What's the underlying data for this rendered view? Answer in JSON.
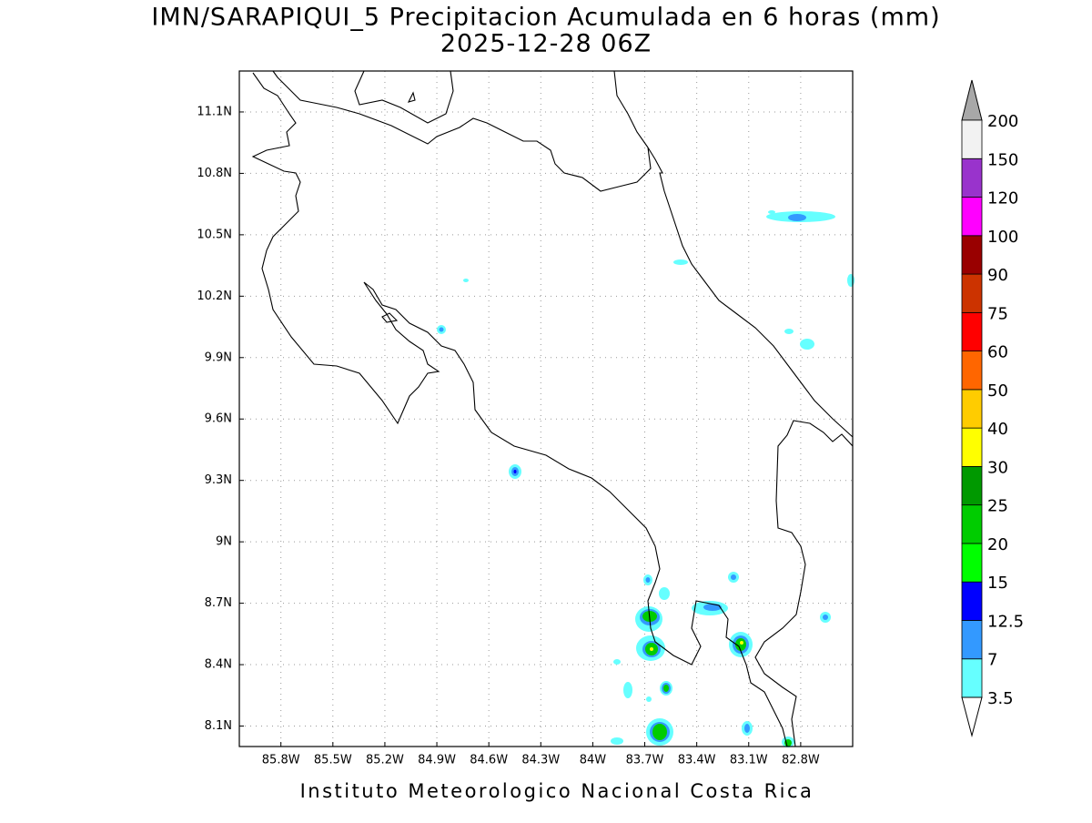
{
  "chart_data": {
    "type": "map",
    "title": "IMN/SARAPIQUI_5 Precipitacion Acumulada en 6 horas (mm)",
    "subtitle": "2025-12-28 06Z",
    "xlim": [
      -86.04,
      -82.5
    ],
    "ylim": [
      8.0,
      11.3
    ],
    "xticks": [
      {
        "value": -85.8,
        "label": "85.8W"
      },
      {
        "value": -85.5,
        "label": "85.5W"
      },
      {
        "value": -85.2,
        "label": "85.2W"
      },
      {
        "value": -84.9,
        "label": "84.9W"
      },
      {
        "value": -84.6,
        "label": "84.6W"
      },
      {
        "value": -84.3,
        "label": "84.3W"
      },
      {
        "value": -84.0,
        "label": "84W"
      },
      {
        "value": -83.7,
        "label": "83.7W"
      },
      {
        "value": -83.4,
        "label": "83.4W"
      },
      {
        "value": -83.1,
        "label": "83.1W"
      },
      {
        "value": -82.8,
        "label": "82.8W"
      }
    ],
    "yticks": [
      {
        "value": 8.1,
        "label": "8.1N"
      },
      {
        "value": 8.4,
        "label": "8.4N"
      },
      {
        "value": 8.7,
        "label": "8.7N"
      },
      {
        "value": 9.0,
        "label": "9N"
      },
      {
        "value": 9.3,
        "label": "9.3N"
      },
      {
        "value": 9.6,
        "label": "9.6N"
      },
      {
        "value": 9.9,
        "label": "9.9N"
      },
      {
        "value": 10.2,
        "label": "10.2N"
      },
      {
        "value": 10.5,
        "label": "10.5N"
      },
      {
        "value": 10.8,
        "label": "10.8N"
      },
      {
        "value": 11.1,
        "label": "11.1N"
      }
    ],
    "grid": true,
    "colorbar": {
      "levels": [
        3.5,
        7,
        12.5,
        15,
        20,
        25,
        30,
        40,
        50,
        60,
        75,
        90,
        100,
        120,
        150,
        200
      ],
      "colors": [
        "#66ffff",
        "#3399ff",
        "#0000ff",
        "#00ff00",
        "#00cc00",
        "#009900",
        "#ffff00",
        "#ffcc00",
        "#ff6600",
        "#ff0000",
        "#cc3300",
        "#990000",
        "#ff00ff",
        "#9933cc",
        "#f2f2f2"
      ],
      "under_color": "#ffffff",
      "over_color": "#a8a8a8"
    },
    "footer": "Instituto Meteorologico Nacional Costa Rica"
  }
}
